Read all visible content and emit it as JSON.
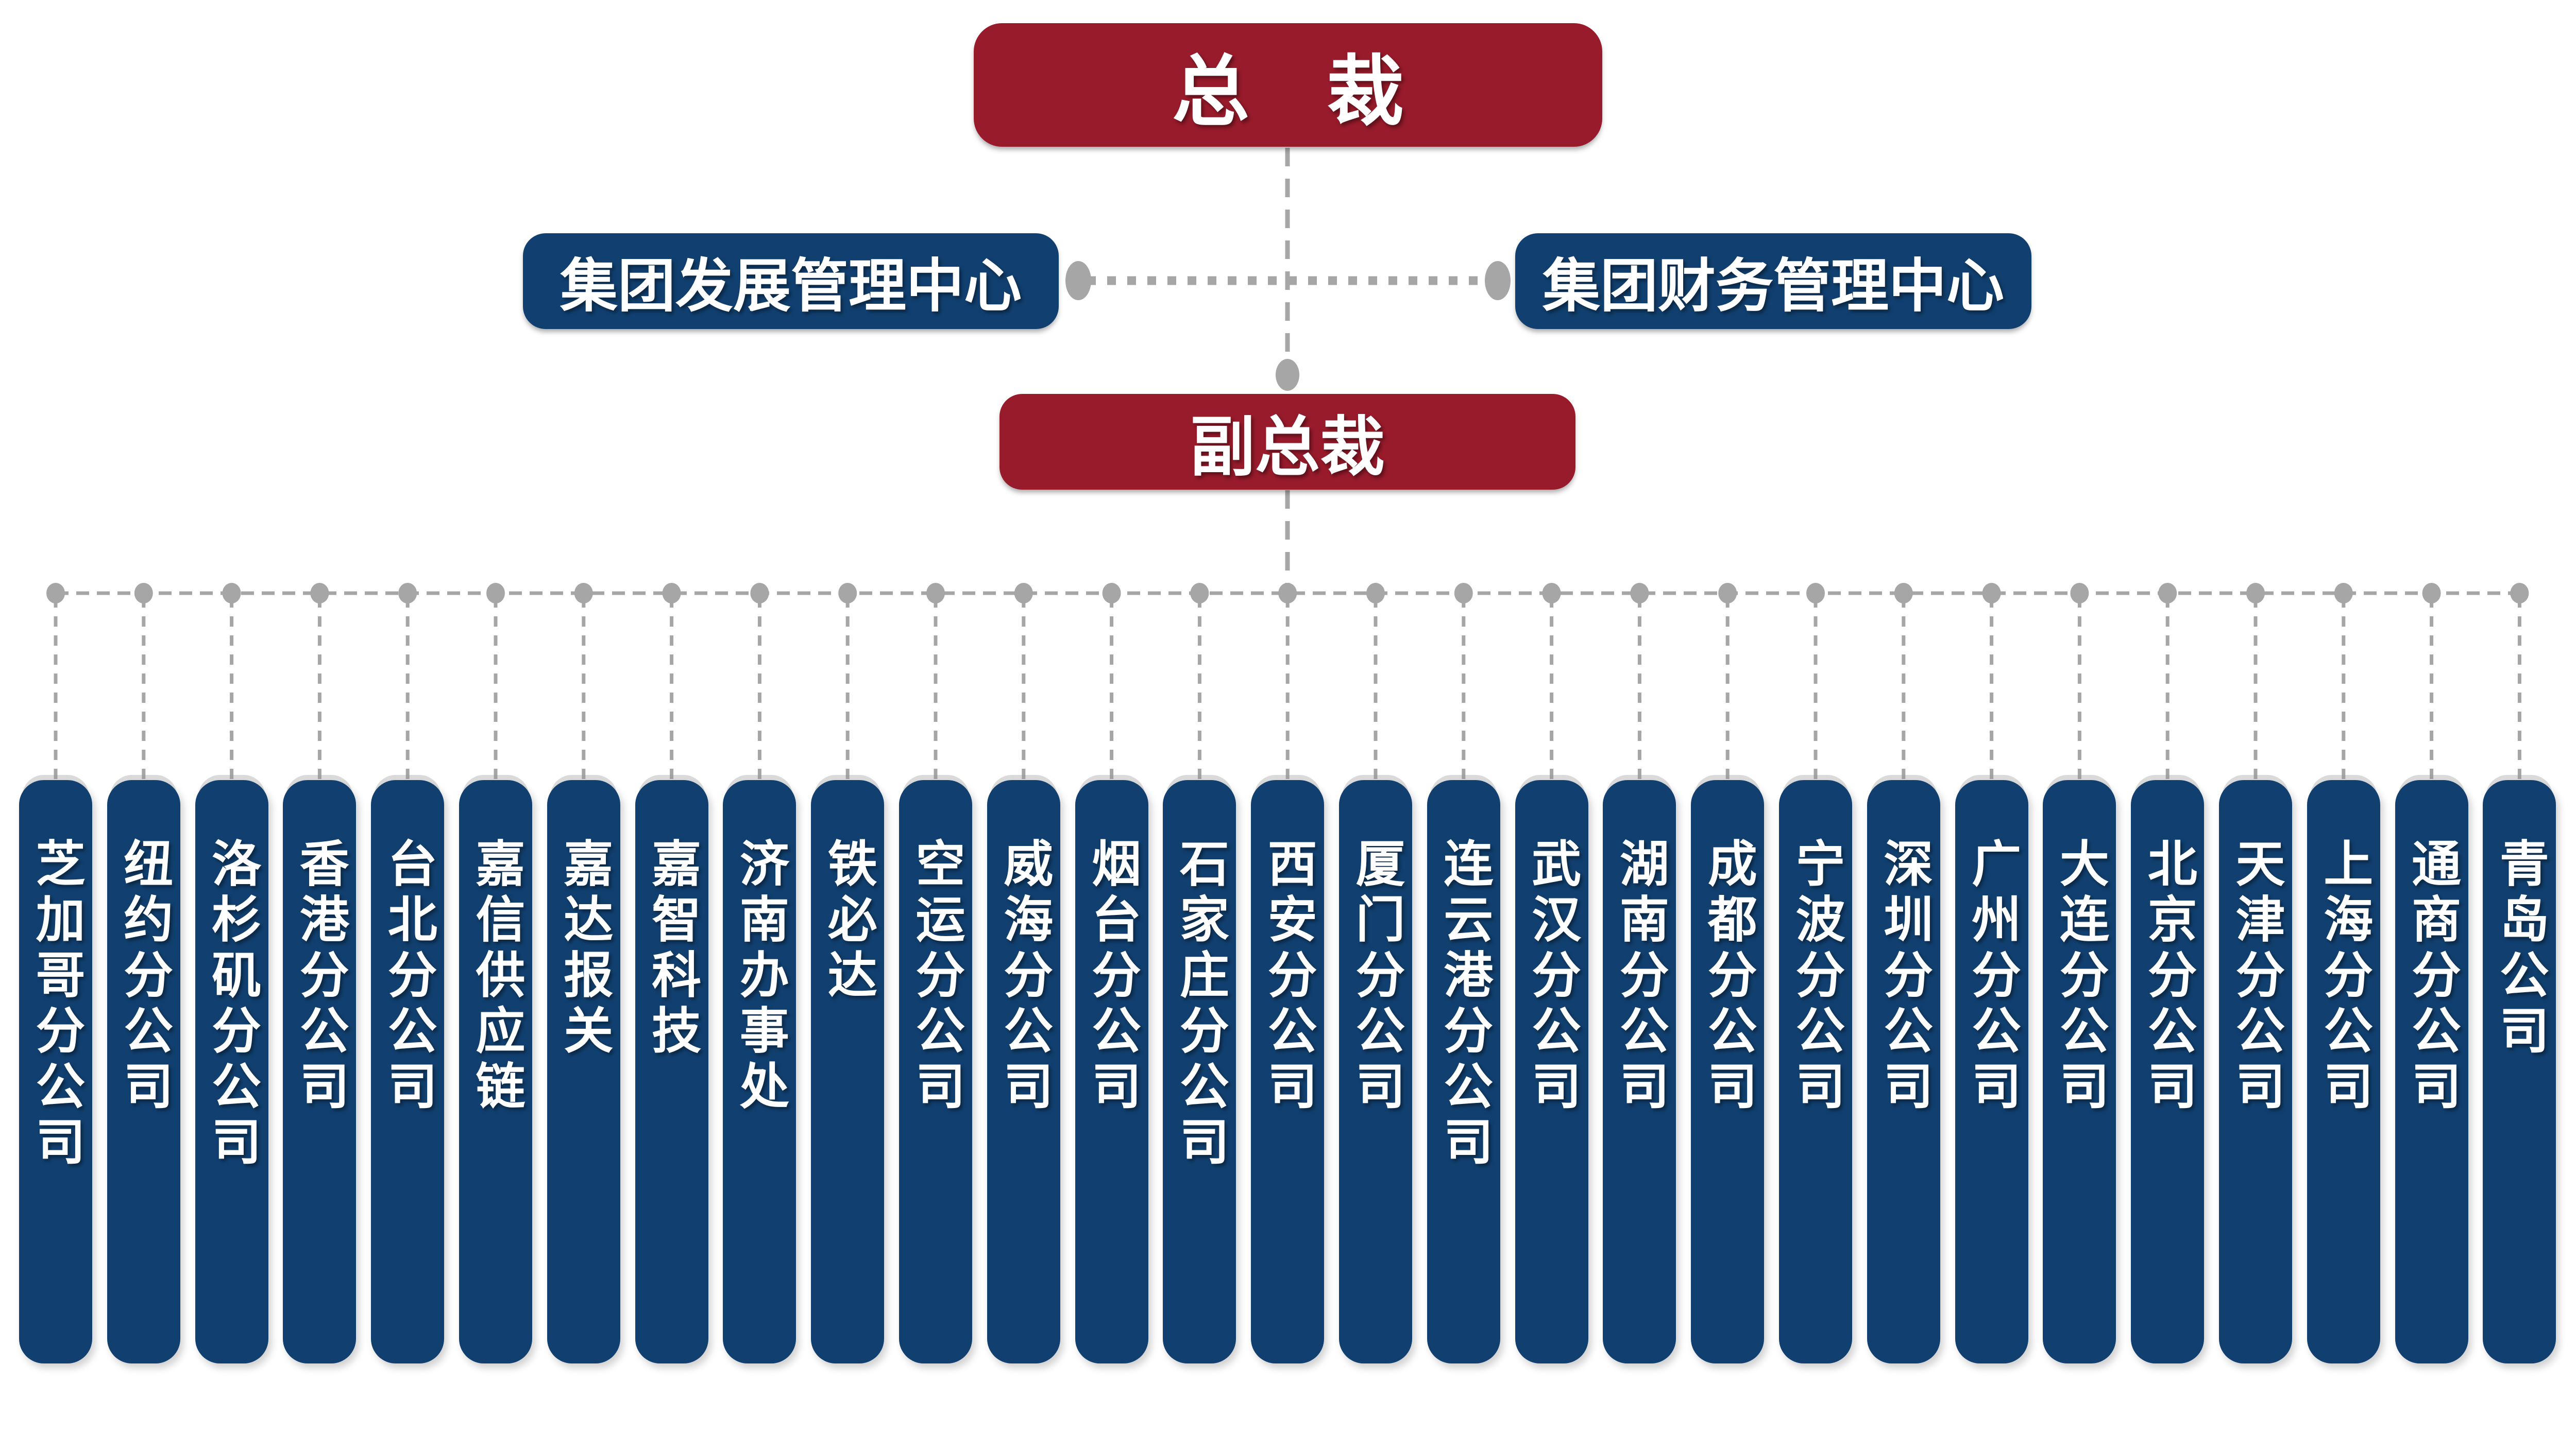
{
  "colors": {
    "primary_red": "#981B2B",
    "primary_blue": "#114070",
    "connector_gray": "#A6A6A6",
    "text_white": "#FFFFFF",
    "background": "#FFFFFF"
  },
  "org_chart": {
    "root": {
      "label": "总　裁"
    },
    "staff_centers": [
      {
        "label": "集团发展管理中心"
      },
      {
        "label": "集团财务管理中心"
      }
    ],
    "deputy": {
      "label": "副总裁"
    },
    "branches": [
      {
        "label": "芝加哥分公司"
      },
      {
        "label": "纽约分公司"
      },
      {
        "label": "洛杉矶分公司"
      },
      {
        "label": "香港分公司"
      },
      {
        "label": "台北分公司"
      },
      {
        "label": "嘉信供应链"
      },
      {
        "label": "嘉达报关"
      },
      {
        "label": "嘉智科技"
      },
      {
        "label": "济南办事处"
      },
      {
        "label": "铁必达"
      },
      {
        "label": "空运分公司"
      },
      {
        "label": "威海分公司"
      },
      {
        "label": "烟台分公司"
      },
      {
        "label": "石家庄分公司"
      },
      {
        "label": "西安分公司"
      },
      {
        "label": "厦门分公司"
      },
      {
        "label": "连云港分公司"
      },
      {
        "label": "武汉分公司"
      },
      {
        "label": "湖南分公司"
      },
      {
        "label": "成都分公司"
      },
      {
        "label": "宁波分公司"
      },
      {
        "label": "深圳分公司"
      },
      {
        "label": "广州分公司"
      },
      {
        "label": "大连分公司"
      },
      {
        "label": "北京分公司"
      },
      {
        "label": "天津分公司"
      },
      {
        "label": "上海分公司"
      },
      {
        "label": "通商分公司"
      },
      {
        "label": "青岛公司"
      }
    ]
  }
}
